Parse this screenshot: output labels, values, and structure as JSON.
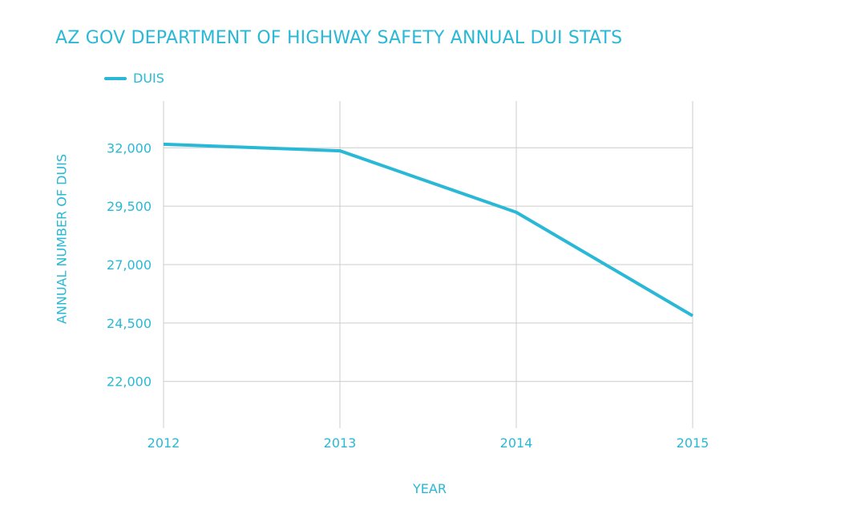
{
  "chart_data": {
    "type": "line",
    "title": "AZ GOV DEPARTMENT OF HIGHWAY SAFETY ANNUAL DUI STATS",
    "xlabel": "YEAR",
    "ylabel": "ANNUAL NUMBER OF DUIS",
    "categories": [
      "2012",
      "2013",
      "2014",
      "2015"
    ],
    "series": [
      {
        "name": "DUIS",
        "values": [
          32150,
          31870,
          29240,
          24810
        ],
        "color": "#29b8d6"
      }
    ],
    "yticks": [
      22000,
      24500,
      27000,
      29500,
      32000
    ],
    "ytick_labels": [
      "22,000",
      "24,500",
      "27,000",
      "29,500",
      "32,000"
    ],
    "ylim": [
      20000,
      34000
    ],
    "grid": true,
    "legend_position": "top-left",
    "colors": {
      "accent": "#29b8d6",
      "grid": "#cccccc"
    }
  }
}
